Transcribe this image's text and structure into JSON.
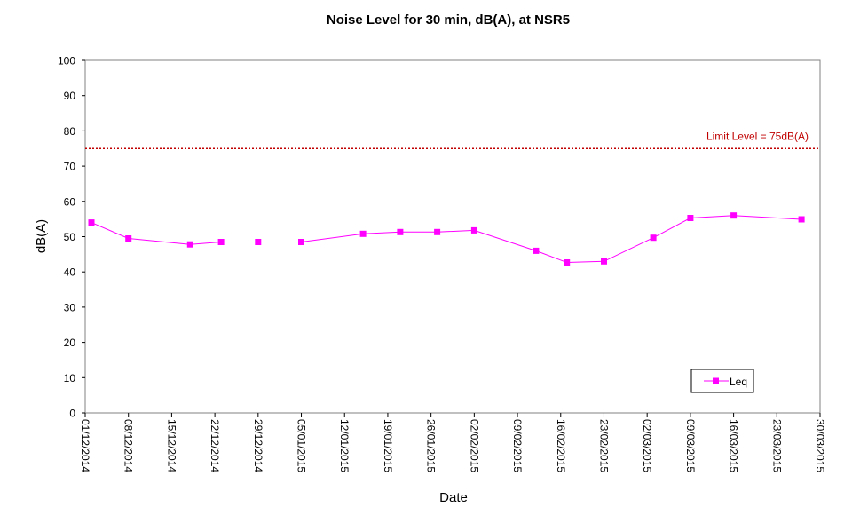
{
  "chart_data": {
    "type": "line",
    "title": "Noise Level for 30 min, dB(A), at NSR5",
    "xlabel": "Date",
    "ylabel": "dB(A)",
    "ylim": [
      0,
      100
    ],
    "yticks": [
      "0",
      "10",
      "20",
      "30",
      "40",
      "50",
      "60",
      "70",
      "80",
      "90",
      "100"
    ],
    "xlim": [
      "2014-12-01",
      "2015-03-30"
    ],
    "xticks": [
      {
        "date": "2014-12-01",
        "label": "01/12/2014"
      },
      {
        "date": "2014-12-08",
        "label": "08/12/2014"
      },
      {
        "date": "2014-12-15",
        "label": "15/12/2014"
      },
      {
        "date": "2014-12-22",
        "label": "22/12/2014"
      },
      {
        "date": "2014-12-29",
        "label": "29/12/2014"
      },
      {
        "date": "2015-01-05",
        "label": "05/01/2015"
      },
      {
        "date": "2015-01-12",
        "label": "12/01/2015"
      },
      {
        "date": "2015-01-19",
        "label": "19/01/2015"
      },
      {
        "date": "2015-01-26",
        "label": "26/01/2015"
      },
      {
        "date": "2015-02-02",
        "label": "02/02/2015"
      },
      {
        "date": "2015-02-09",
        "label": "09/02/2015"
      },
      {
        "date": "2015-02-16",
        "label": "16/02/2015"
      },
      {
        "date": "2015-02-23",
        "label": "23/02/2015"
      },
      {
        "date": "2015-03-02",
        "label": "02/03/2015"
      },
      {
        "date": "2015-03-09",
        "label": "09/03/2015"
      },
      {
        "date": "2015-03-16",
        "label": "16/03/2015"
      },
      {
        "date": "2015-03-23",
        "label": "23/03/2015"
      },
      {
        "date": "2015-03-30",
        "label": "30/03/2015"
      }
    ],
    "series": [
      {
        "name": "Leq",
        "color": "#FF00FF",
        "marker": "square",
        "points": [
          {
            "x": "2014-12-02",
            "y": 54.0
          },
          {
            "x": "2014-12-08",
            "y": 49.5
          },
          {
            "x": "2014-12-18",
            "y": 47.8
          },
          {
            "x": "2014-12-23",
            "y": 48.5
          },
          {
            "x": "2014-12-29",
            "y": 48.5
          },
          {
            "x": "2015-01-05",
            "y": 48.5
          },
          {
            "x": "2015-01-15",
            "y": 50.8
          },
          {
            "x": "2015-01-21",
            "y": 51.3
          },
          {
            "x": "2015-01-27",
            "y": 51.3
          },
          {
            "x": "2015-02-02",
            "y": 51.8
          },
          {
            "x": "2015-02-12",
            "y": 46.0
          },
          {
            "x": "2015-02-17",
            "y": 42.7
          },
          {
            "x": "2015-02-23",
            "y": 43.0
          },
          {
            "x": "2015-03-03",
            "y": 49.7
          },
          {
            "x": "2015-03-09",
            "y": 55.3
          },
          {
            "x": "2015-03-16",
            "y": 56.0
          },
          {
            "x": "2015-03-27",
            "y": 54.9
          }
        ]
      }
    ],
    "reference_line": {
      "label": "Limit Level  = 75dB(A)",
      "y": 75,
      "color": "#C00000",
      "style": "dotted"
    },
    "legend": {
      "position": "bottom-right",
      "entries": [
        "Leq"
      ]
    },
    "grid": false
  }
}
